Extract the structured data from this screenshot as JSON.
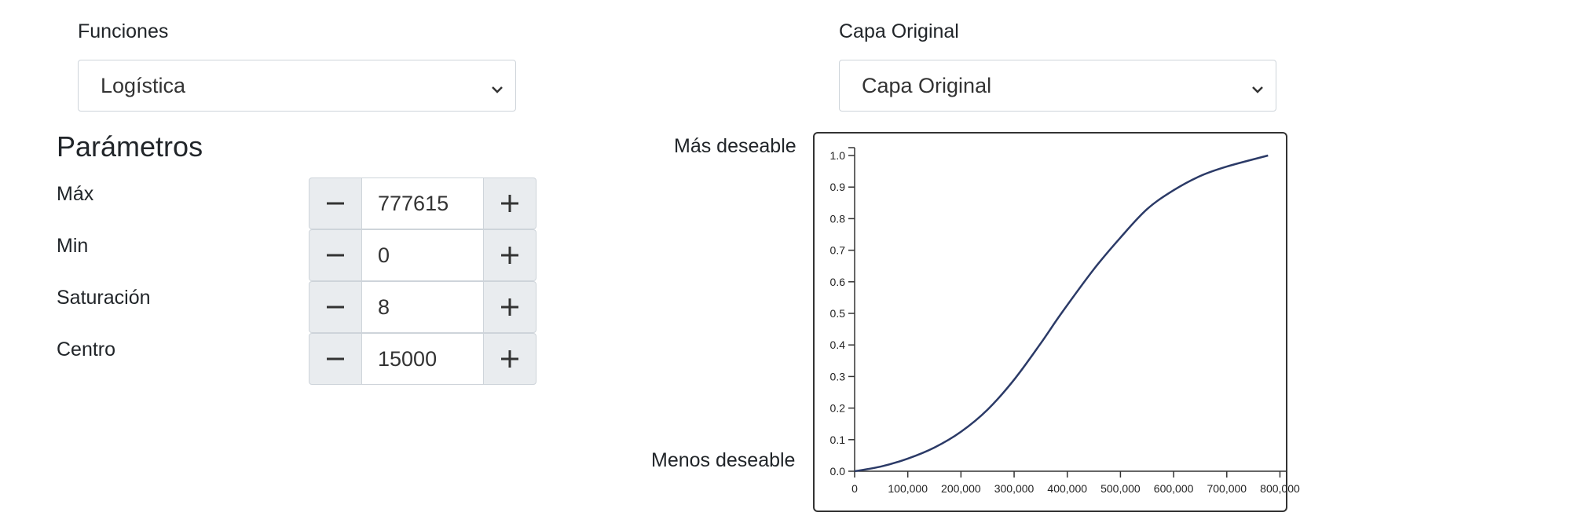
{
  "functions": {
    "label": "Funciones",
    "selected": "Logística"
  },
  "layer": {
    "label": "Capa Original",
    "selected": "Capa Original"
  },
  "parameters": {
    "title": "Parámetros",
    "items": [
      {
        "label": "Máx",
        "value": "777615"
      },
      {
        "label": "Min",
        "value": "0"
      },
      {
        "label": "Saturación",
        "value": "8"
      },
      {
        "label": "Centro",
        "value": "15000"
      }
    ]
  },
  "chart": {
    "top_label": "Más deseable",
    "bottom_label": "Menos deseable"
  },
  "icons": {
    "minus": "minus-icon",
    "plus": "plus-icon",
    "dropdown": "chevron-down-icon"
  },
  "colors": {
    "curve": "#2b3a67",
    "axis": "#333333"
  },
  "chart_data": {
    "type": "line",
    "title": "",
    "xlabel": "",
    "ylabel": "",
    "xlim": [
      0,
      820000
    ],
    "ylim": [
      0,
      1.0
    ],
    "x_ticks": [
      "0",
      "100,000",
      "200,000",
      "300,000",
      "400,000",
      "500,000",
      "600,000",
      "700,000",
      "800,000"
    ],
    "y_ticks": [
      "0.0",
      "0.1",
      "0.2",
      "0.3",
      "0.4",
      "0.5",
      "0.6",
      "0.7",
      "0.8",
      "0.9",
      "1.0"
    ],
    "x": [
      0,
      50000,
      100000,
      150000,
      200000,
      250000,
      300000,
      350000,
      388808,
      450000,
      500000,
      550000,
      600000,
      650000,
      700000,
      777615
    ],
    "y": [
      0,
      0.015,
      0.04,
      0.075,
      0.125,
      0.195,
      0.29,
      0.405,
      0.5,
      0.64,
      0.74,
      0.83,
      0.89,
      0.935,
      0.965,
      1.0
    ],
    "grid": false,
    "legend": "none"
  }
}
